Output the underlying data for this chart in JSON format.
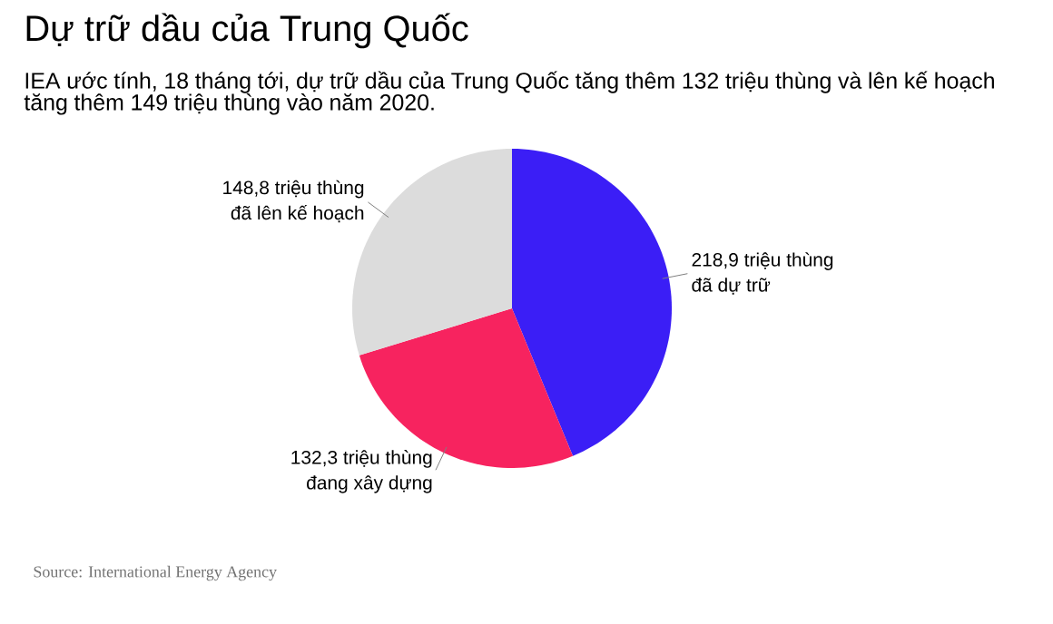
{
  "chart_data": {
    "type": "pie",
    "title": "Dự trữ dầu của Trung Quốc",
    "subtitle": "IEA ước tính, 18 tháng tới, dự trữ dầu của Trung Quốc tăng thêm 132 triệu thùng và lên kế hoạch tăng thêm 149 triệu thùng vào năm 2020.",
    "categories": [
      "đã dự trữ",
      "đang xây dựng",
      "đã lên kế hoạch"
    ],
    "values": [
      218.9,
      132.3,
      148.8
    ],
    "value_labels": [
      "218,9 triệu thùng",
      "132,3 triệu thùng",
      "148,8 triệu thùng"
    ],
    "colors": [
      "#3b1ef6",
      "#f7235f",
      "#dcdcdc"
    ],
    "annotations": [
      "Source: International Energy Agency"
    ]
  }
}
